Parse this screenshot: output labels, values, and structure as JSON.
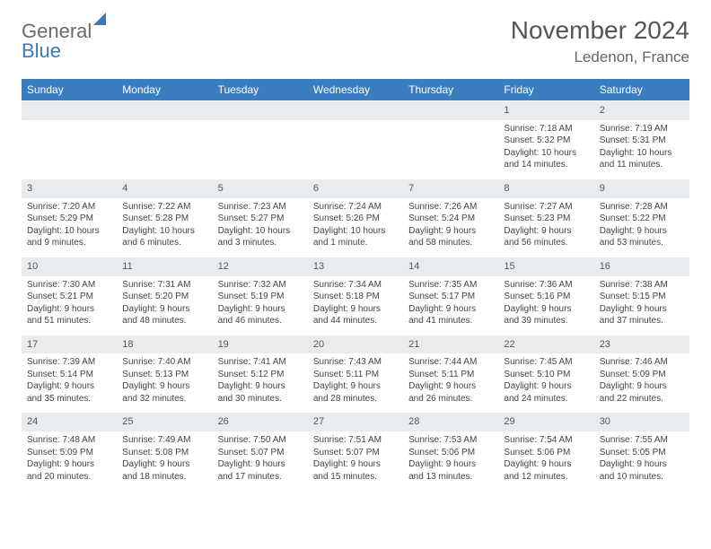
{
  "brand": {
    "part1": "General",
    "part2": "Blue"
  },
  "title": "November 2024",
  "location": "Ledenon, France",
  "day_headers": [
    "Sunday",
    "Monday",
    "Tuesday",
    "Wednesday",
    "Thursday",
    "Friday",
    "Saturday"
  ],
  "colors": {
    "header_bg": "#3a7ebf",
    "header_fg": "#ffffff",
    "daynum_bg": "#e9ecef",
    "text": "#444444",
    "brand_gray": "#6a6a6a",
    "brand_blue": "#3a7ab8"
  },
  "type": "calendar-table",
  "weeks": [
    [
      null,
      null,
      null,
      null,
      null,
      {
        "n": "1",
        "sunrise": "7:18 AM",
        "sunset": "5:32 PM",
        "day1": "Daylight: 10 hours",
        "day2": "and 14 minutes."
      },
      {
        "n": "2",
        "sunrise": "7:19 AM",
        "sunset": "5:31 PM",
        "day1": "Daylight: 10 hours",
        "day2": "and 11 minutes."
      }
    ],
    [
      {
        "n": "3",
        "sunrise": "7:20 AM",
        "sunset": "5:29 PM",
        "day1": "Daylight: 10 hours",
        "day2": "and 9 minutes."
      },
      {
        "n": "4",
        "sunrise": "7:22 AM",
        "sunset": "5:28 PM",
        "day1": "Daylight: 10 hours",
        "day2": "and 6 minutes."
      },
      {
        "n": "5",
        "sunrise": "7:23 AM",
        "sunset": "5:27 PM",
        "day1": "Daylight: 10 hours",
        "day2": "and 3 minutes."
      },
      {
        "n": "6",
        "sunrise": "7:24 AM",
        "sunset": "5:26 PM",
        "day1": "Daylight: 10 hours",
        "day2": "and 1 minute."
      },
      {
        "n": "7",
        "sunrise": "7:26 AM",
        "sunset": "5:24 PM",
        "day1": "Daylight: 9 hours",
        "day2": "and 58 minutes."
      },
      {
        "n": "8",
        "sunrise": "7:27 AM",
        "sunset": "5:23 PM",
        "day1": "Daylight: 9 hours",
        "day2": "and 56 minutes."
      },
      {
        "n": "9",
        "sunrise": "7:28 AM",
        "sunset": "5:22 PM",
        "day1": "Daylight: 9 hours",
        "day2": "and 53 minutes."
      }
    ],
    [
      {
        "n": "10",
        "sunrise": "7:30 AM",
        "sunset": "5:21 PM",
        "day1": "Daylight: 9 hours",
        "day2": "and 51 minutes."
      },
      {
        "n": "11",
        "sunrise": "7:31 AM",
        "sunset": "5:20 PM",
        "day1": "Daylight: 9 hours",
        "day2": "and 48 minutes."
      },
      {
        "n": "12",
        "sunrise": "7:32 AM",
        "sunset": "5:19 PM",
        "day1": "Daylight: 9 hours",
        "day2": "and 46 minutes."
      },
      {
        "n": "13",
        "sunrise": "7:34 AM",
        "sunset": "5:18 PM",
        "day1": "Daylight: 9 hours",
        "day2": "and 44 minutes."
      },
      {
        "n": "14",
        "sunrise": "7:35 AM",
        "sunset": "5:17 PM",
        "day1": "Daylight: 9 hours",
        "day2": "and 41 minutes."
      },
      {
        "n": "15",
        "sunrise": "7:36 AM",
        "sunset": "5:16 PM",
        "day1": "Daylight: 9 hours",
        "day2": "and 39 minutes."
      },
      {
        "n": "16",
        "sunrise": "7:38 AM",
        "sunset": "5:15 PM",
        "day1": "Daylight: 9 hours",
        "day2": "and 37 minutes."
      }
    ],
    [
      {
        "n": "17",
        "sunrise": "7:39 AM",
        "sunset": "5:14 PM",
        "day1": "Daylight: 9 hours",
        "day2": "and 35 minutes."
      },
      {
        "n": "18",
        "sunrise": "7:40 AM",
        "sunset": "5:13 PM",
        "day1": "Daylight: 9 hours",
        "day2": "and 32 minutes."
      },
      {
        "n": "19",
        "sunrise": "7:41 AM",
        "sunset": "5:12 PM",
        "day1": "Daylight: 9 hours",
        "day2": "and 30 minutes."
      },
      {
        "n": "20",
        "sunrise": "7:43 AM",
        "sunset": "5:11 PM",
        "day1": "Daylight: 9 hours",
        "day2": "and 28 minutes."
      },
      {
        "n": "21",
        "sunrise": "7:44 AM",
        "sunset": "5:11 PM",
        "day1": "Daylight: 9 hours",
        "day2": "and 26 minutes."
      },
      {
        "n": "22",
        "sunrise": "7:45 AM",
        "sunset": "5:10 PM",
        "day1": "Daylight: 9 hours",
        "day2": "and 24 minutes."
      },
      {
        "n": "23",
        "sunrise": "7:46 AM",
        "sunset": "5:09 PM",
        "day1": "Daylight: 9 hours",
        "day2": "and 22 minutes."
      }
    ],
    [
      {
        "n": "24",
        "sunrise": "7:48 AM",
        "sunset": "5:09 PM",
        "day1": "Daylight: 9 hours",
        "day2": "and 20 minutes."
      },
      {
        "n": "25",
        "sunrise": "7:49 AM",
        "sunset": "5:08 PM",
        "day1": "Daylight: 9 hours",
        "day2": "and 18 minutes."
      },
      {
        "n": "26",
        "sunrise": "7:50 AM",
        "sunset": "5:07 PM",
        "day1": "Daylight: 9 hours",
        "day2": "and 17 minutes."
      },
      {
        "n": "27",
        "sunrise": "7:51 AM",
        "sunset": "5:07 PM",
        "day1": "Daylight: 9 hours",
        "day2": "and 15 minutes."
      },
      {
        "n": "28",
        "sunrise": "7:53 AM",
        "sunset": "5:06 PM",
        "day1": "Daylight: 9 hours",
        "day2": "and 13 minutes."
      },
      {
        "n": "29",
        "sunrise": "7:54 AM",
        "sunset": "5:06 PM",
        "day1": "Daylight: 9 hours",
        "day2": "and 12 minutes."
      },
      {
        "n": "30",
        "sunrise": "7:55 AM",
        "sunset": "5:05 PM",
        "day1": "Daylight: 9 hours",
        "day2": "and 10 minutes."
      }
    ]
  ],
  "labels": {
    "sunrise": "Sunrise: ",
    "sunset": "Sunset: "
  }
}
